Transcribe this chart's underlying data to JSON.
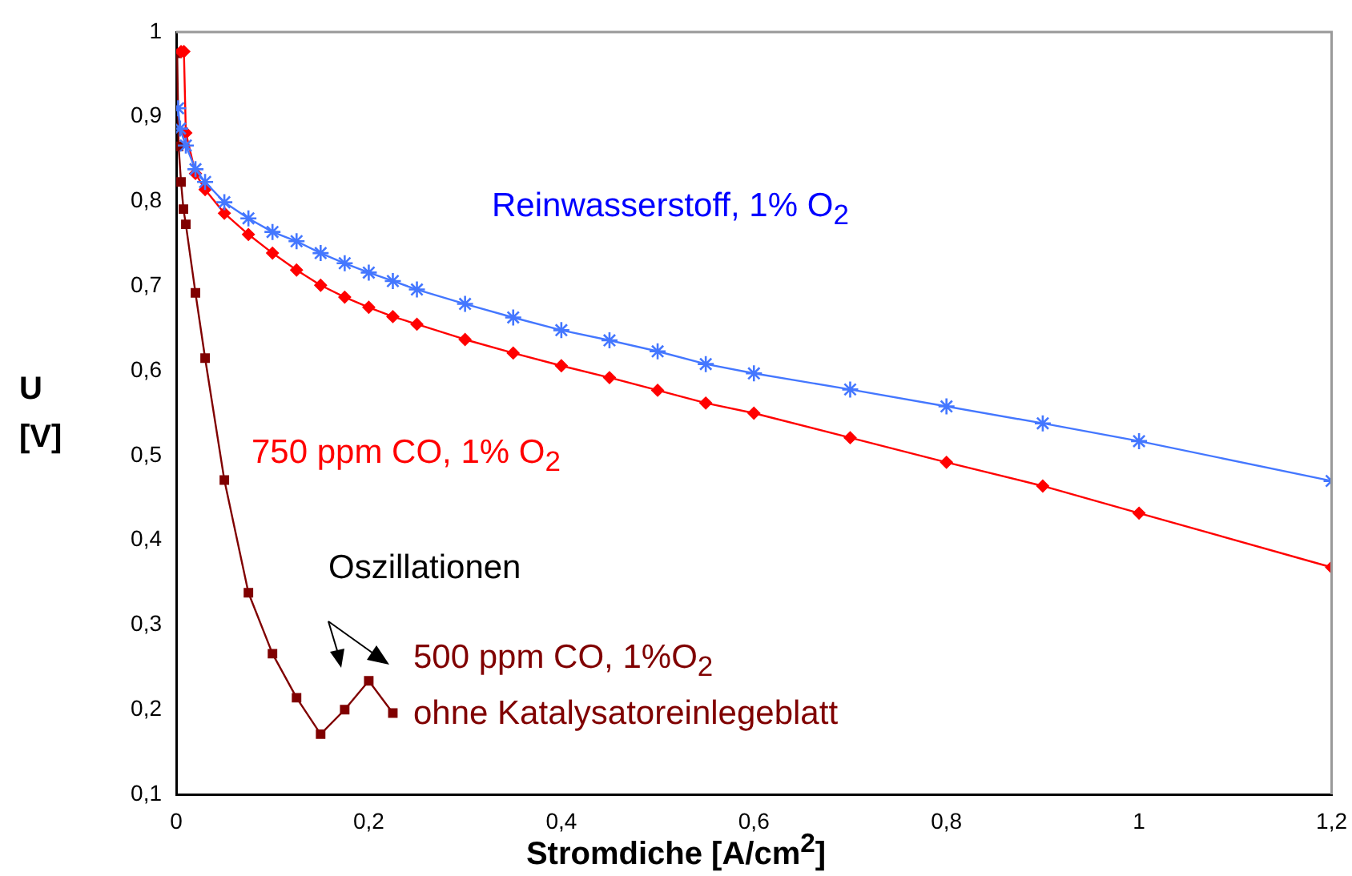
{
  "chart_data": {
    "type": "line",
    "xlabel": "Stromdiche [A/cm$^{2}$]",
    "ylabel": "U\n[V]",
    "annotations": [
      "Oszillationen"
    ],
    "xlim": [
      0,
      1.2
    ],
    "ylim": [
      0.1,
      1
    ],
    "xticks": [
      0,
      {
        "value": 0.2,
        "label": "0,2"
      },
      {
        "value": 0.4,
        "label": "0,4"
      },
      {
        "value": 0.6,
        "label": "0,6"
      },
      {
        "value": 0.8,
        "label": "0,8"
      },
      1,
      {
        "value": 1.2,
        "label": "1,2"
      }
    ],
    "yticks": [
      {
        "value": 0.1,
        "label": "0,1"
      },
      {
        "value": 0.2,
        "label": "0,2"
      },
      {
        "value": 0.3,
        "label": "0,3"
      },
      {
        "value": 0.4,
        "label": "0,4"
      },
      {
        "value": 0.5,
        "label": "0,5"
      },
      {
        "value": 0.6,
        "label": "0,6"
      },
      {
        "value": 0.7,
        "label": "0,7"
      },
      {
        "value": 0.8,
        "label": "0,8"
      },
      {
        "value": 0.9,
        "label": "0,9"
      },
      1
    ],
    "series": [
      {
        "name": "Reinwasserstoff, 1% O$_{2}$",
        "color": "#4477ff",
        "marker": "cross",
        "x": [
          0.002,
          0.004,
          0.01,
          0.02,
          0.03,
          0.05,
          0.075,
          0.1,
          0.125,
          0.15,
          0.175,
          0.2,
          0.225,
          0.25,
          0.3,
          0.35,
          0.4,
          0.45,
          0.5,
          0.55,
          0.6,
          0.7,
          0.8,
          0.9,
          1,
          1.2
        ],
        "values": [
          0.91,
          0.886,
          0.866,
          0.838,
          0.823,
          0.799,
          0.78,
          0.764,
          0.753,
          0.739,
          0.727,
          0.716,
          0.706,
          0.696,
          0.679,
          0.663,
          0.648,
          0.636,
          0.623,
          0.608,
          0.597,
          0.578,
          0.558,
          0.538,
          0.517,
          0.47
        ]
      },
      {
        "name": "750 ppm CO, 1% O$_{2}$",
        "color": "#ff0000",
        "marker": "diamond",
        "x": [
          0.005,
          0.008,
          0.01,
          0.02,
          0.03,
          0.05,
          0.075,
          0.1,
          0.125,
          0.15,
          0.175,
          0.2,
          0.225,
          0.25,
          0.3,
          0.35,
          0.4,
          0.45,
          0.5,
          0.55,
          0.6,
          0.7,
          0.8,
          0.9,
          1,
          1.2
        ],
        "values": [
          0.977,
          0.977,
          0.881,
          0.833,
          0.814,
          0.786,
          0.761,
          0.739,
          0.719,
          0.701,
          0.687,
          0.675,
          0.664,
          0.655,
          0.637,
          0.621,
          0.606,
          0.592,
          0.577,
          0.562,
          0.55,
          0.521,
          0.492,
          0.464,
          0.432,
          0.368
        ]
      },
      {
        "name": "500 ppm CO, 1%O$_{2}$\nohne Katalysatoreinlegeblatt",
        "color": "#800000",
        "marker": "square",
        "x": [
          0.001,
          0.0025,
          0.005,
          0.0075,
          0.01,
          0.02,
          0.03,
          0.05,
          0.075,
          0.1,
          0.125,
          0.15,
          0.175,
          0.2,
          0.225
        ],
        "values": [
          0.975,
          0.865,
          0.823,
          0.791,
          0.773,
          0.692,
          0.615,
          0.471,
          0.338,
          0.266,
          0.214,
          0.171,
          0.2,
          0.234,
          0.196
        ]
      }
    ]
  }
}
